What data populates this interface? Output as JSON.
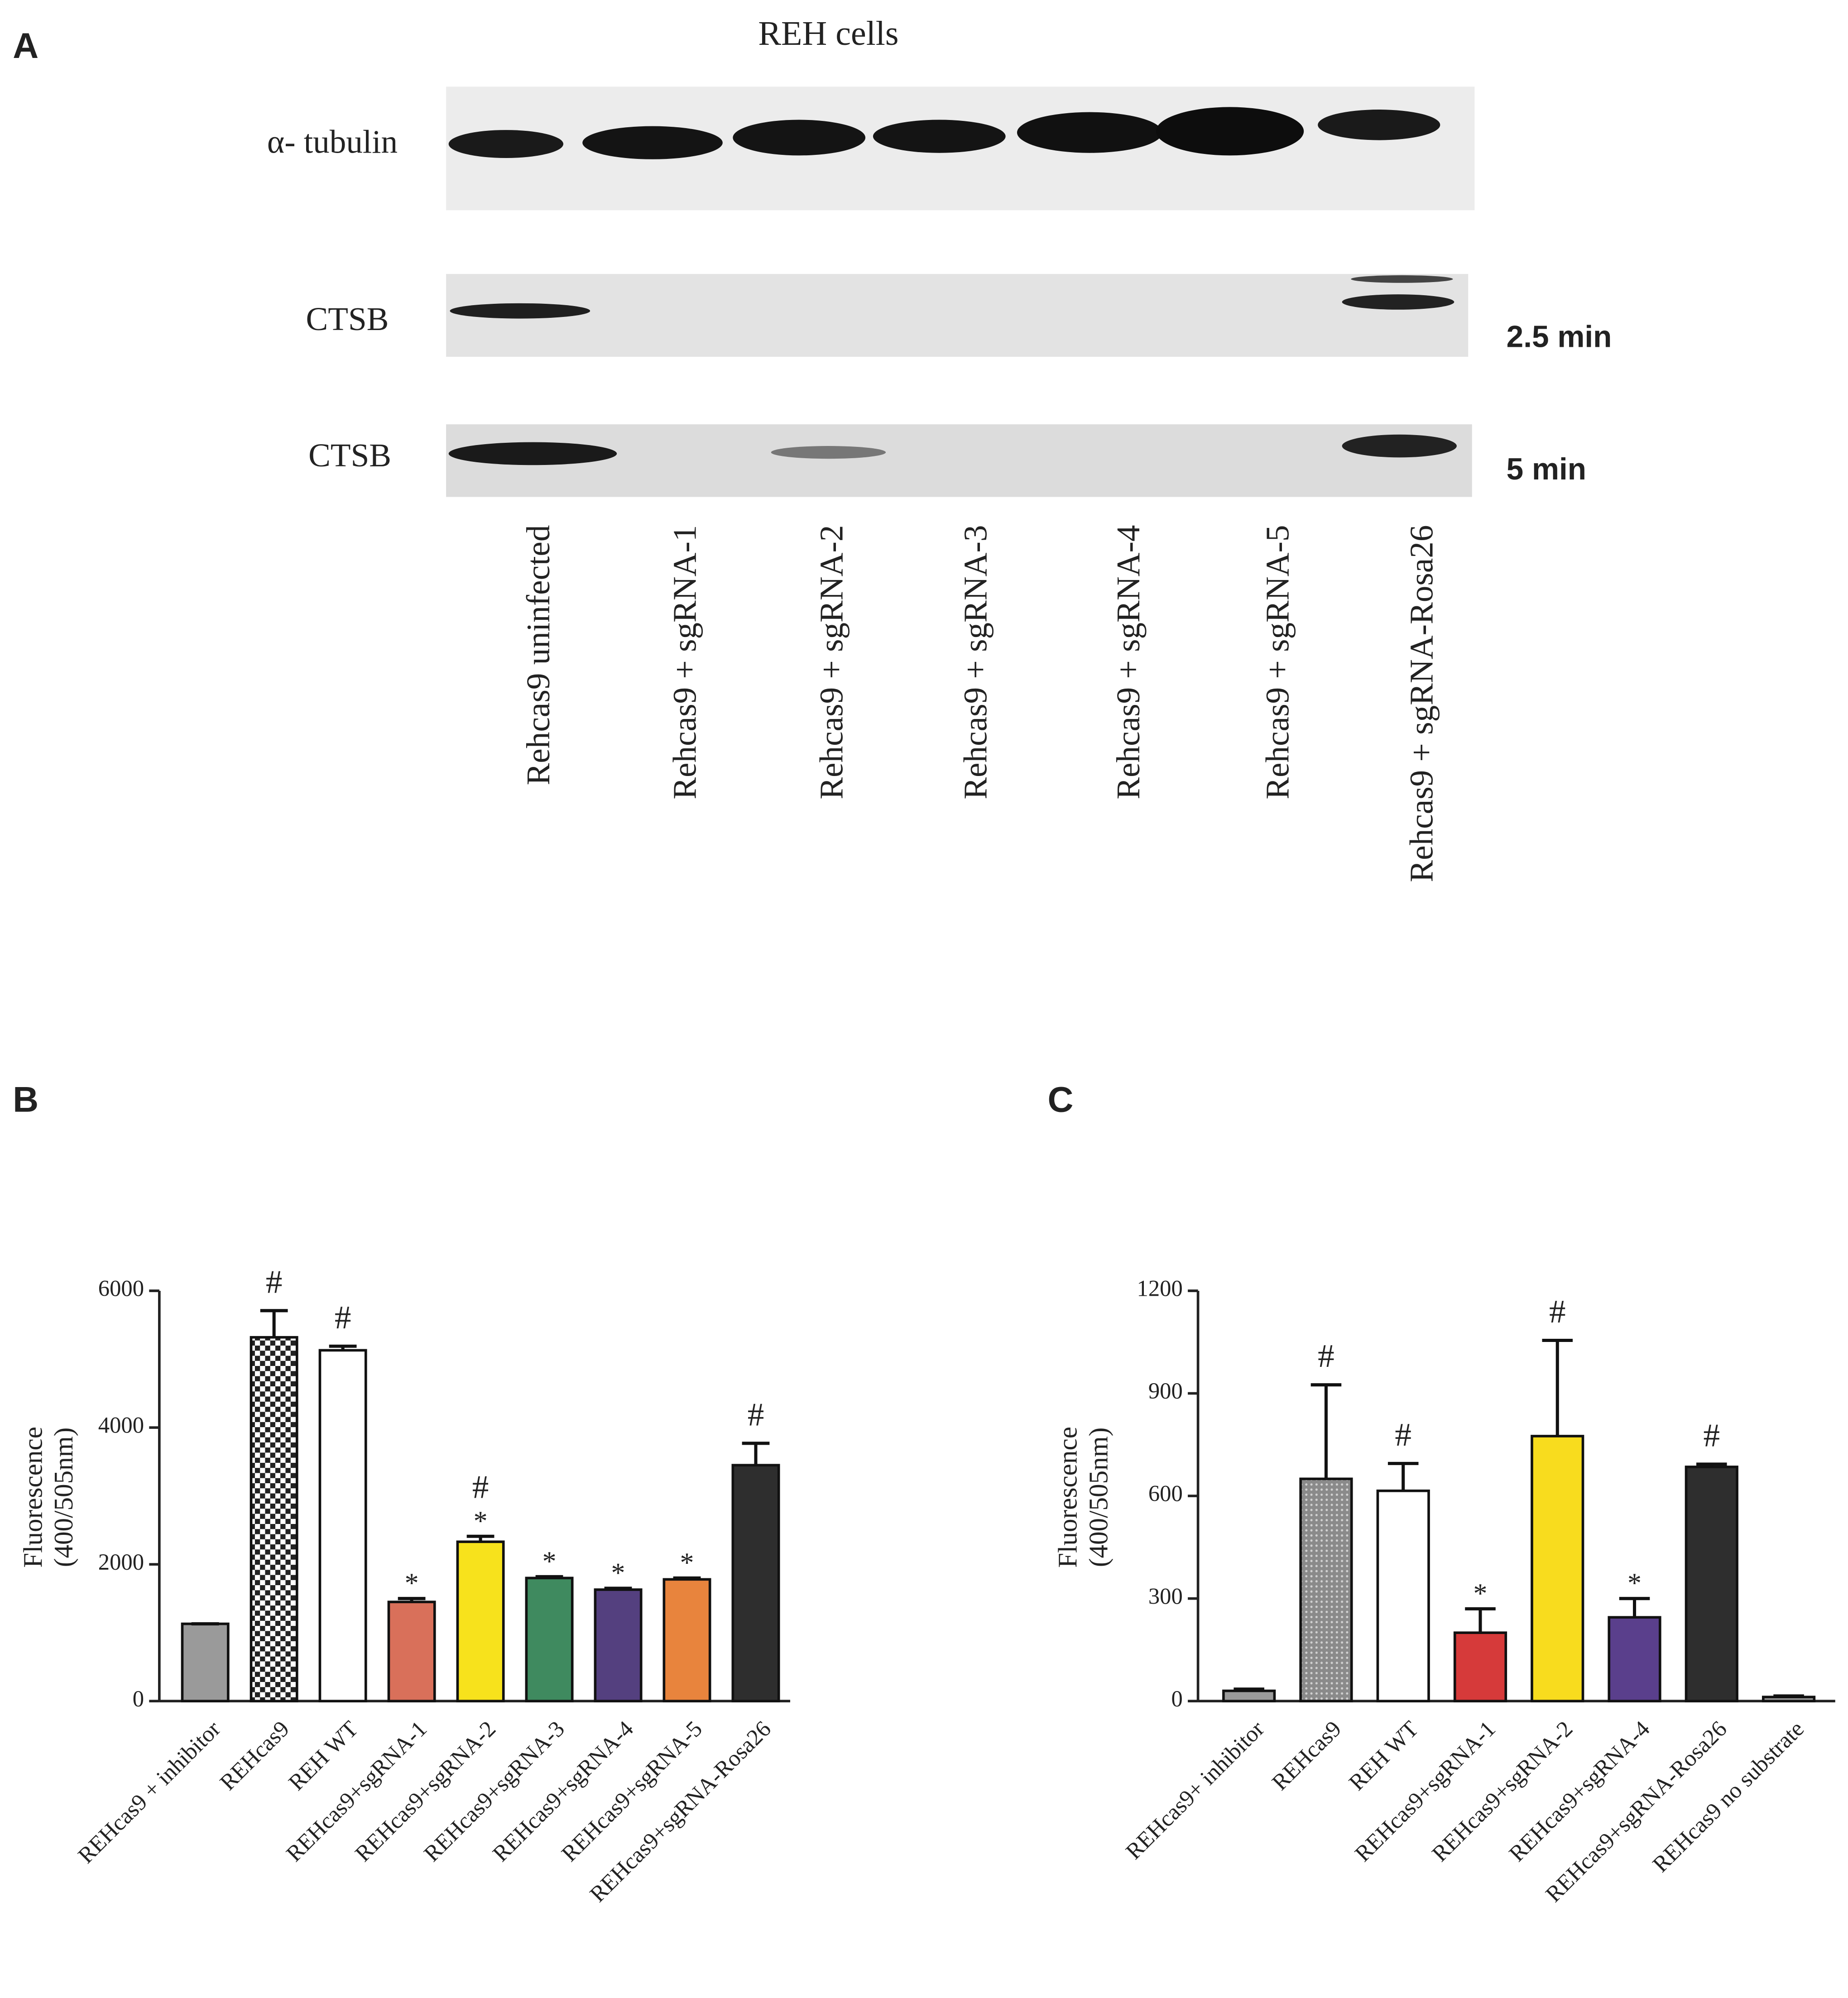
{
  "panel_a": {
    "panel_label": "A",
    "title": "REH  cells",
    "rows": [
      "α- tubulin",
      "CTSB",
      "CTSB"
    ],
    "exposures": [
      "2.5 min",
      "5 min"
    ],
    "lanes": [
      "Rehcas9 uninfected",
      "Rehcas9 + sgRNA-1",
      "Rehcas9 + sgRNA-2",
      "Rehcas9 + sgRNA-3",
      "Rehcas9 + sgRNA-4",
      "Rehcas9 + sgRNA-5",
      "Rehcas9 + sgRNA-Rosa26"
    ]
  },
  "chart_data": [
    {
      "type": "bar",
      "panel_label": "B",
      "ylabel": [
        "Fluorescence",
        "(400/505nm)"
      ],
      "categories": [
        "REHcas9 + inhibitor",
        "REHcas9",
        "REH WT",
        "REHcas9+sgRNA-1",
        "REHcas9+sgRNA-2",
        "REHcas9+sgRNA-3",
        "REHcas9+sgRNA-4",
        "REHcas9+sgRNA-5",
        "REHcas9+sgRNA-Rosa26"
      ],
      "values": [
        1130,
        5320,
        5130,
        1450,
        2330,
        1800,
        1630,
        1780,
        3450
      ],
      "errors": [
        0,
        390,
        60,
        50,
        80,
        20,
        20,
        20,
        320
      ],
      "colors": [
        "#9a9a9a",
        "#222222",
        "#ffffff",
        "#d9705a",
        "#f7e21c",
        "#3f8a5f",
        "#54407f",
        "#e8843d",
        "#2e2e2e"
      ],
      "fill_patterns": [
        null,
        "checker",
        null,
        null,
        null,
        null,
        null,
        null,
        null
      ],
      "significance": [
        [],
        [
          "#"
        ],
        [
          "#"
        ],
        [
          "*"
        ],
        [
          "#",
          "*"
        ],
        [
          "*"
        ],
        [
          "*"
        ],
        [
          "*"
        ],
        [
          "#"
        ]
      ],
      "ylim": [
        0,
        6000
      ],
      "yticks": [
        0,
        2000,
        4000,
        6000
      ]
    },
    {
      "type": "bar",
      "panel_label": "C",
      "ylabel": [
        "Fluorescence",
        "(400/505nm)"
      ],
      "categories": [
        "REHcas9+ inhibitor",
        "REHcas9",
        "REH WT",
        "REHcas9+sgRNA-1",
        "REHcas9+sgRNA-2",
        "REHcas9+sgRNA-4",
        "REHcas9+sgRNA-Rosa26",
        "REHcas9 no substrate"
      ],
      "values": [
        30,
        650,
        615,
        200,
        775,
        245,
        685,
        12
      ],
      "errors": [
        5,
        275,
        80,
        70,
        280,
        55,
        8,
        3
      ],
      "colors": [
        "#9a9a9a",
        "#8a8a8a",
        "#ffffff",
        "#d63a3a",
        "#f8dc1e",
        "#5a3f8c",
        "#2e2e2e",
        "#9a9a9a"
      ],
      "fill_patterns": [
        null,
        "dots",
        null,
        null,
        null,
        null,
        null,
        null
      ],
      "significance": [
        [],
        [
          "#"
        ],
        [
          "#"
        ],
        [
          "*"
        ],
        [
          "#"
        ],
        [
          "*"
        ],
        [
          "#"
        ],
        []
      ],
      "ylim": [
        0,
        1200
      ],
      "yticks": [
        0,
        300,
        600,
        900,
        1200
      ]
    }
  ]
}
